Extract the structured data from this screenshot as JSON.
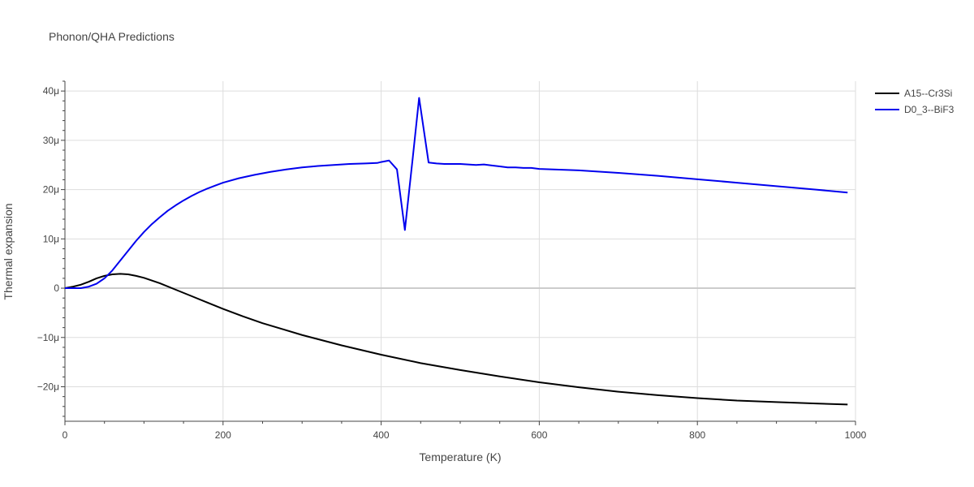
{
  "chart_data": {
    "type": "line",
    "title": "Phonon/QHA Predictions",
    "xlabel": "Temperature (K)",
    "ylabel": "Thermal expansion",
    "xlim": [
      0,
      1000
    ],
    "ylim": [
      -27,
      42
    ],
    "x_ticks": [
      0,
      200,
      400,
      600,
      800,
      1000
    ],
    "x_tick_labels": [
      "0",
      "200",
      "400",
      "600",
      "800",
      "1000"
    ],
    "y_ticks": [
      -20,
      -10,
      0,
      10,
      20,
      30,
      40
    ],
    "y_tick_labels": [
      "−20μ",
      "−10μ",
      "0",
      "10μ",
      "20μ",
      "30μ",
      "40μ"
    ],
    "grid": true,
    "legend_position": "top-right",
    "series": [
      {
        "name": "A15--Cr3Si",
        "color": "#000000",
        "x": [
          0,
          10,
          20,
          30,
          40,
          50,
          60,
          70,
          80,
          90,
          100,
          120,
          140,
          160,
          180,
          200,
          225,
          250,
          275,
          300,
          350,
          400,
          450,
          500,
          550,
          600,
          650,
          700,
          750,
          800,
          850,
          900,
          950,
          990
        ],
        "y": [
          0,
          0.3,
          0.7,
          1.3,
          2.0,
          2.5,
          2.8,
          2.9,
          2.8,
          2.5,
          2.1,
          1.0,
          -0.3,
          -1.6,
          -2.9,
          -4.2,
          -5.7,
          -7.1,
          -8.3,
          -9.5,
          -11.6,
          -13.5,
          -15.2,
          -16.6,
          -17.9,
          -19.1,
          -20.1,
          -21.0,
          -21.7,
          -22.3,
          -22.8,
          -23.1,
          -23.4,
          -23.6
        ]
      },
      {
        "name": "D0_3--BiF3",
        "color": "#0000ee",
        "x": [
          0,
          10,
          20,
          30,
          40,
          50,
          60,
          70,
          80,
          90,
          100,
          110,
          120,
          130,
          140,
          150,
          160,
          170,
          180,
          190,
          200,
          220,
          240,
          260,
          280,
          300,
          320,
          340,
          360,
          380,
          395,
          400,
          410,
          420,
          430,
          440,
          448,
          460,
          470,
          480,
          490,
          500,
          510,
          520,
          530,
          540,
          550,
          560,
          570,
          580,
          590,
          600,
          650,
          700,
          750,
          800,
          850,
          900,
          950,
          990
        ],
        "y": [
          0,
          0,
          0,
          0.3,
          0.9,
          2.0,
          3.6,
          5.6,
          7.6,
          9.6,
          11.4,
          13.0,
          14.4,
          15.7,
          16.8,
          17.8,
          18.7,
          19.5,
          20.2,
          20.8,
          21.4,
          22.3,
          23.0,
          23.6,
          24.1,
          24.5,
          24.8,
          25.0,
          25.2,
          25.3,
          25.4,
          25.6,
          25.9,
          24.1,
          11.8,
          26.5,
          38.6,
          25.5,
          25.3,
          25.2,
          25.2,
          25.2,
          25.1,
          25.0,
          25.1,
          24.9,
          24.7,
          24.5,
          24.5,
          24.4,
          24.4,
          24.2,
          23.9,
          23.4,
          22.8,
          22.1,
          21.4,
          20.7,
          20.0,
          19.4
        ]
      }
    ]
  }
}
